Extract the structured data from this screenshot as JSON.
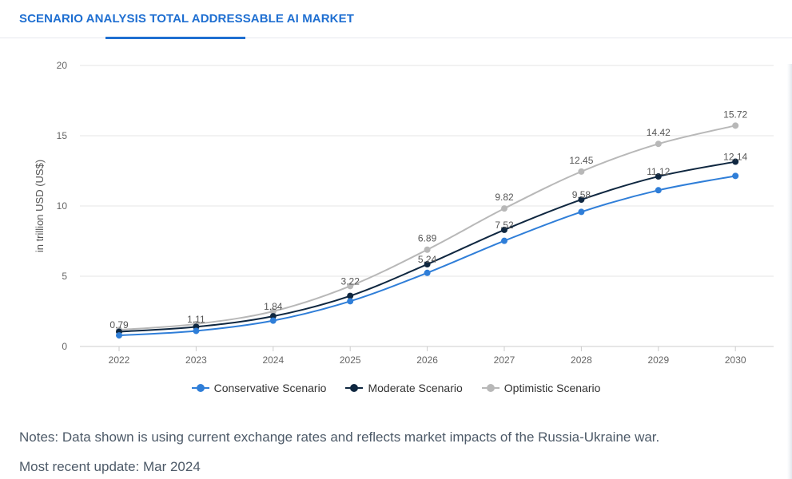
{
  "header": {
    "title": "SCENARIO ANALYSIS TOTAL ADDRESSABLE AI MARKET"
  },
  "chart_data": {
    "type": "line",
    "title": "SCENARIO ANALYSIS TOTAL ADDRESSABLE AI MARKET",
    "xlabel": "",
    "ylabel": "in trillion USD (US$)",
    "ylim": [
      0,
      20
    ],
    "yticks": [
      0,
      5,
      10,
      15,
      20
    ],
    "grid": true,
    "legend": "bottom-center",
    "categories": [
      "2022",
      "2023",
      "2024",
      "2025",
      "2026",
      "2027",
      "2028",
      "2029",
      "2030"
    ],
    "series": [
      {
        "name": "Conservative Scenario",
        "color": "#2f7ed8",
        "values": [
          0.79,
          1.11,
          1.84,
          3.22,
          5.24,
          7.52,
          9.58,
          11.12,
          12.14
        ],
        "labels": [
          "0.79",
          "1.11",
          "1.84",
          "3.22",
          "5.24",
          "7.52",
          "9.58",
          "11.12",
          "12.14"
        ]
      },
      {
        "name": "Moderate Scenario",
        "color": "#0f2740",
        "values": [
          1.05,
          1.4,
          2.15,
          3.6,
          5.85,
          8.3,
          10.45,
          12.1,
          13.15
        ]
      },
      {
        "name": "Optimistic Scenario",
        "color": "#b8b8b8",
        "values": [
          1.18,
          1.6,
          2.5,
          4.3,
          6.89,
          9.82,
          12.45,
          14.42,
          15.72
        ],
        "labels": [
          "",
          "",
          "",
          "",
          "6.89",
          "9.82",
          "12.45",
          "14.42",
          "15.72"
        ]
      }
    ]
  },
  "notes": {
    "text": "Notes: Data shown is using current exchange rates and reflects market impacts of the Russia-Ukraine war.",
    "update": "Most recent update: Mar 2024"
  }
}
